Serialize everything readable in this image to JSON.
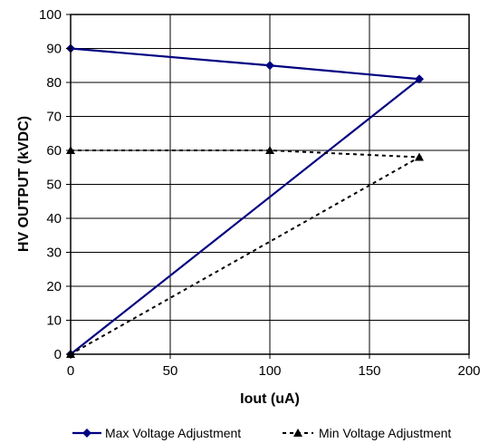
{
  "chart_data": {
    "type": "line",
    "title": "",
    "xlabel": "Iout (uA)",
    "ylabel": "HV OUTPUT (kVDC)",
    "xlim": [
      0,
      200
    ],
    "ylim": [
      0,
      100
    ],
    "xticks": [
      0,
      50,
      100,
      150,
      200
    ],
    "yticks": [
      0,
      10,
      20,
      30,
      40,
      50,
      60,
      70,
      80,
      90,
      100
    ],
    "grid": true,
    "legend_position": "bottom",
    "series": [
      {
        "name": "Max Voltage Adjustment",
        "color": "#000080",
        "line_style": "solid",
        "marker": "diamond",
        "points": [
          [
            0,
            90
          ],
          [
            100,
            85
          ],
          [
            175,
            81
          ],
          [
            0,
            0
          ]
        ]
      },
      {
        "name": "Min Voltage Adjustment",
        "color": "#000000",
        "line_style": "dashed",
        "marker": "triangle",
        "points": [
          [
            0,
            60
          ],
          [
            100,
            60
          ],
          [
            175,
            58
          ],
          [
            0,
            0
          ]
        ]
      }
    ]
  }
}
